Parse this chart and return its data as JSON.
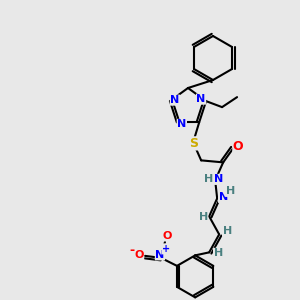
{
  "background_color": "#e8e8e8",
  "atom_colors": {
    "N": "#0000ff",
    "O": "#ff0000",
    "S": "#ccaa00",
    "C": "#000000",
    "H": "#4a8080"
  },
  "bond_color": "#000000",
  "line_width": 1.5
}
